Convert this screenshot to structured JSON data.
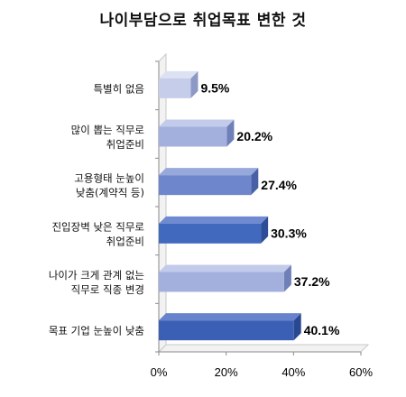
{
  "chart_data": {
    "type": "bar",
    "orientation": "horizontal",
    "title": "나이부담으로 취업목표 변한 것",
    "categories": [
      [
        "특별히 없음"
      ],
      [
        "많이 뽑는 직무로",
        "취업준비"
      ],
      [
        "고용형태 눈높이",
        "낮춤(계약직 등)"
      ],
      [
        "진입장벽 낮은 직무로",
        "취업준비"
      ],
      [
        "나이가 크게 관계 없는",
        "직무로 직종 변경"
      ],
      [
        "목표 기업 눈높이 낮춤"
      ]
    ],
    "values": [
      9.5,
      20.2,
      27.4,
      30.3,
      37.2,
      40.1
    ],
    "value_labels": [
      "9.5%",
      "20.2%",
      "27.4%",
      "30.3%",
      "37.2%",
      "40.1%"
    ],
    "x_ticks": [
      "0%",
      "20%",
      "40%",
      "60%"
    ],
    "xlim": [
      0,
      60
    ],
    "grid": false,
    "bar_colors": [
      "#c5cdea",
      "#a3b0dd",
      "#6e86cb",
      "#4169be",
      "#a3b0dd",
      "#3a5fb5"
    ],
    "bar_side_colors": [
      "#8c99c4",
      "#6f7fb8",
      "#4760a6",
      "#2d4d99",
      "#6f7fb8",
      "#2a4891"
    ],
    "bar_top_colors": [
      "#dde2f3",
      "#c3cbea",
      "#97a8da",
      "#6f8ad0",
      "#c3cbea",
      "#6683cc"
    ]
  }
}
